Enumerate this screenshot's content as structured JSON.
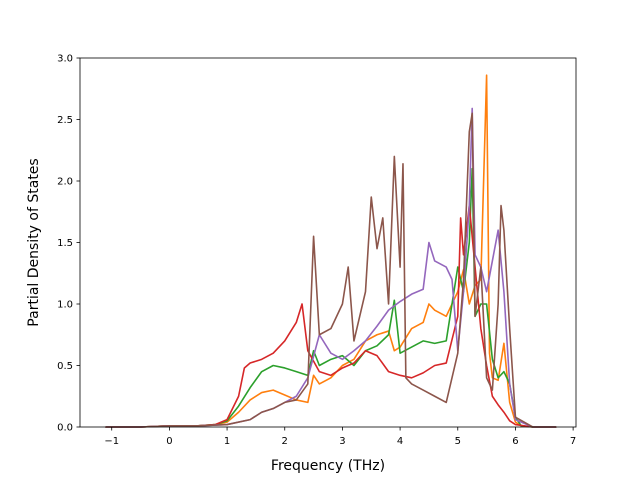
{
  "chart_data": {
    "type": "line",
    "title": "",
    "xlabel": "Frequency (THz)",
    "ylabel": "Partial Density of States",
    "xlim": [
      -1.55,
      7.05
    ],
    "ylim": [
      0,
      3.0
    ],
    "xticks": [
      -1,
      0,
      1,
      2,
      3,
      4,
      5,
      6,
      7
    ],
    "yticks": [
      0.0,
      0.5,
      1.0,
      1.5,
      2.0,
      2.5,
      3.0
    ],
    "xtick_labels": [
      "−1",
      "0",
      "1",
      "2",
      "3",
      "4",
      "5",
      "6",
      "7"
    ],
    "ytick_labels": [
      "0.0",
      "0.5",
      "1.0",
      "1.5",
      "2.0",
      "2.5",
      "3.0"
    ],
    "grid": false,
    "legend": "none",
    "series": [
      {
        "color": "#ff7f0e",
        "x": [
          -1.1,
          -0.5,
          0.0,
          0.5,
          0.8,
          1.0,
          1.2,
          1.4,
          1.6,
          1.8,
          2.0,
          2.2,
          2.4,
          2.5,
          2.6,
          2.8,
          3.0,
          3.2,
          3.4,
          3.6,
          3.8,
          3.9,
          4.0,
          4.2,
          4.4,
          4.5,
          4.6,
          4.8,
          5.0,
          5.1,
          5.2,
          5.3,
          5.4,
          5.5,
          5.55,
          5.6,
          5.7,
          5.8,
          5.9,
          6.0,
          6.1,
          6.3,
          6.7
        ],
        "y": [
          0.0,
          0.0,
          0.01,
          0.01,
          0.02,
          0.04,
          0.12,
          0.22,
          0.28,
          0.3,
          0.26,
          0.22,
          0.2,
          0.42,
          0.35,
          0.4,
          0.5,
          0.55,
          0.7,
          0.75,
          0.78,
          0.62,
          0.65,
          0.8,
          0.85,
          1.0,
          0.95,
          0.9,
          1.1,
          1.28,
          1.0,
          1.15,
          1.2,
          2.86,
          0.6,
          0.4,
          0.38,
          0.68,
          0.2,
          0.04,
          0.01,
          0.0,
          0.0
        ]
      },
      {
        "color": "#2ca02c",
        "x": [
          -1.1,
          -0.5,
          0.0,
          0.5,
          0.8,
          1.0,
          1.2,
          1.4,
          1.6,
          1.8,
          2.0,
          2.2,
          2.4,
          2.5,
          2.6,
          2.8,
          3.0,
          3.2,
          3.4,
          3.6,
          3.8,
          3.9,
          4.0,
          4.2,
          4.4,
          4.6,
          4.8,
          5.0,
          5.1,
          5.2,
          5.25,
          5.3,
          5.4,
          5.5,
          5.6,
          5.7,
          5.8,
          5.9,
          6.0,
          6.1,
          6.3,
          6.7
        ],
        "y": [
          0.0,
          0.0,
          0.01,
          0.01,
          0.02,
          0.05,
          0.17,
          0.32,
          0.45,
          0.5,
          0.48,
          0.45,
          0.42,
          0.62,
          0.5,
          0.55,
          0.58,
          0.5,
          0.62,
          0.66,
          0.75,
          1.03,
          0.6,
          0.65,
          0.7,
          0.68,
          0.7,
          1.3,
          1.1,
          1.5,
          2.1,
          0.9,
          1.0,
          1.0,
          0.55,
          0.4,
          0.45,
          0.35,
          0.08,
          0.01,
          0.0,
          0.0
        ]
      },
      {
        "color": "#d62728",
        "x": [
          -1.1,
          -0.5,
          0.0,
          0.5,
          0.8,
          1.0,
          1.2,
          1.3,
          1.4,
          1.6,
          1.8,
          2.0,
          2.2,
          2.3,
          2.4,
          2.6,
          2.8,
          3.0,
          3.2,
          3.4,
          3.6,
          3.8,
          4.0,
          4.2,
          4.4,
          4.6,
          4.8,
          5.0,
          5.05,
          5.1,
          5.2,
          5.3,
          5.4,
          5.5,
          5.6,
          5.7,
          5.8,
          5.9,
          6.0,
          6.3,
          6.7
        ],
        "y": [
          0.0,
          0.0,
          0.01,
          0.01,
          0.02,
          0.06,
          0.25,
          0.48,
          0.52,
          0.55,
          0.6,
          0.7,
          0.85,
          1.0,
          0.62,
          0.45,
          0.42,
          0.48,
          0.52,
          0.62,
          0.58,
          0.45,
          0.42,
          0.4,
          0.44,
          0.5,
          0.52,
          0.9,
          1.7,
          1.4,
          1.8,
          1.3,
          0.8,
          0.5,
          0.25,
          0.18,
          0.12,
          0.05,
          0.02,
          0.0,
          0.0
        ]
      },
      {
        "color": "#9467bd",
        "x": [
          -1.1,
          -0.5,
          0.0,
          0.5,
          1.0,
          1.4,
          1.6,
          1.8,
          2.0,
          2.2,
          2.4,
          2.6,
          2.8,
          3.0,
          3.2,
          3.4,
          3.6,
          3.8,
          4.0,
          4.2,
          4.4,
          4.5,
          4.6,
          4.8,
          4.9,
          5.0,
          5.1,
          5.2,
          5.25,
          5.3,
          5.4,
          5.5,
          5.6,
          5.7,
          5.8,
          5.9,
          6.0,
          6.3,
          6.7
        ],
        "y": [
          0.0,
          0.0,
          0.01,
          0.01,
          0.02,
          0.06,
          0.12,
          0.15,
          0.2,
          0.25,
          0.4,
          0.75,
          0.6,
          0.55,
          0.62,
          0.7,
          0.82,
          0.95,
          1.02,
          1.08,
          1.12,
          1.5,
          1.35,
          1.3,
          1.2,
          0.62,
          1.1,
          1.8,
          2.59,
          1.4,
          1.3,
          1.1,
          1.35,
          1.6,
          1.1,
          0.35,
          0.06,
          0.0,
          0.0
        ]
      },
      {
        "color": "#8c564b",
        "x": [
          -1.1,
          -0.5,
          0.0,
          0.5,
          1.0,
          1.4,
          1.6,
          1.8,
          2.0,
          2.2,
          2.4,
          2.5,
          2.6,
          2.8,
          3.0,
          3.1,
          3.2,
          3.4,
          3.5,
          3.6,
          3.7,
          3.8,
          3.9,
          4.0,
          4.05,
          4.1,
          4.2,
          4.4,
          4.6,
          4.8,
          5.0,
          5.1,
          5.2,
          5.25,
          5.3,
          5.4,
          5.5,
          5.6,
          5.7,
          5.75,
          5.8,
          5.9,
          6.0,
          6.3,
          6.7
        ],
        "y": [
          0.0,
          0.0,
          0.01,
          0.01,
          0.02,
          0.06,
          0.12,
          0.15,
          0.2,
          0.22,
          0.35,
          1.55,
          0.75,
          0.8,
          1.0,
          1.3,
          0.7,
          1.1,
          1.87,
          1.45,
          1.7,
          1.0,
          2.2,
          1.3,
          2.14,
          0.4,
          0.35,
          0.3,
          0.25,
          0.2,
          0.6,
          1.2,
          2.4,
          2.55,
          0.9,
          1.3,
          0.4,
          0.3,
          1.0,
          1.8,
          1.6,
          0.8,
          0.08,
          0.0,
          0.0
        ]
      }
    ]
  }
}
